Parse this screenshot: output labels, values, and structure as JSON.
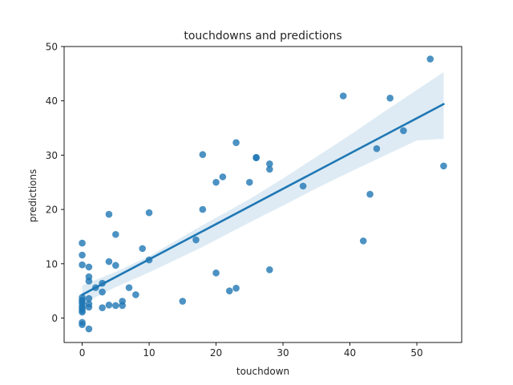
{
  "chart_data": {
    "type": "scatter",
    "title": "touchdowns and predictions",
    "xlabel": "touchdown",
    "ylabel": "predictions",
    "xlim": [
      -2.7,
      56.7
    ],
    "ylim": [
      -4.5,
      50
    ],
    "xticks": [
      0,
      10,
      20,
      30,
      40,
      50
    ],
    "yticks": [
      0,
      10,
      20,
      30,
      40,
      50
    ],
    "grid": false,
    "colors": {
      "points": "#1f77b4",
      "line": "#1f77b4",
      "band": "#1f77b4"
    },
    "points": [
      {
        "x": 0,
        "y": 13.8
      },
      {
        "x": 0,
        "y": 11.6
      },
      {
        "x": 0,
        "y": 9.8
      },
      {
        "x": 0,
        "y": 3.8
      },
      {
        "x": 0,
        "y": 3.3
      },
      {
        "x": 0,
        "y": 3.0
      },
      {
        "x": 0,
        "y": 2.6
      },
      {
        "x": 0,
        "y": 2.1
      },
      {
        "x": 0,
        "y": 1.8
      },
      {
        "x": 0,
        "y": 1.4
      },
      {
        "x": 0,
        "y": 1.1
      },
      {
        "x": 0,
        "y": -0.8
      },
      {
        "x": 0,
        "y": -1.2
      },
      {
        "x": 1,
        "y": 9.4
      },
      {
        "x": 1,
        "y": 7.6
      },
      {
        "x": 1,
        "y": 6.8
      },
      {
        "x": 1,
        "y": 3.6
      },
      {
        "x": 1,
        "y": 2.6
      },
      {
        "x": 1,
        "y": 2.0
      },
      {
        "x": 1,
        "y": -2.0
      },
      {
        "x": 2,
        "y": 5.6
      },
      {
        "x": 3,
        "y": 6.4
      },
      {
        "x": 3,
        "y": 4.8
      },
      {
        "x": 3,
        "y": 1.9
      },
      {
        "x": 4,
        "y": 19.1
      },
      {
        "x": 4,
        "y": 10.4
      },
      {
        "x": 4,
        "y": 2.4
      },
      {
        "x": 5,
        "y": 15.4
      },
      {
        "x": 5,
        "y": 9.7
      },
      {
        "x": 5,
        "y": 2.3
      },
      {
        "x": 6,
        "y": 3.1
      },
      {
        "x": 6,
        "y": 2.3
      },
      {
        "x": 7,
        "y": 5.6
      },
      {
        "x": 8,
        "y": 4.3
      },
      {
        "x": 9,
        "y": 12.8
      },
      {
        "x": 10,
        "y": 19.4
      },
      {
        "x": 10,
        "y": 10.7
      },
      {
        "x": 15,
        "y": 3.1
      },
      {
        "x": 17,
        "y": 14.4
      },
      {
        "x": 18,
        "y": 30.1
      },
      {
        "x": 18,
        "y": 20.0
      },
      {
        "x": 20,
        "y": 25.0
      },
      {
        "x": 20,
        "y": 8.3
      },
      {
        "x": 21,
        "y": 26.0
      },
      {
        "x": 22,
        "y": 5.0
      },
      {
        "x": 23,
        "y": 32.3
      },
      {
        "x": 23,
        "y": 5.5
      },
      {
        "x": 25,
        "y": 25.0
      },
      {
        "x": 26,
        "y": 29.6
      },
      {
        "x": 26,
        "y": 29.5
      },
      {
        "x": 28,
        "y": 28.4
      },
      {
        "x": 28,
        "y": 27.4
      },
      {
        "x": 28,
        "y": 8.9
      },
      {
        "x": 33,
        "y": 24.3
      },
      {
        "x": 39,
        "y": 40.9
      },
      {
        "x": 42,
        "y": 14.2
      },
      {
        "x": 43,
        "y": 22.8
      },
      {
        "x": 44,
        "y": 31.2
      },
      {
        "x": 46,
        "y": 40.5
      },
      {
        "x": 48,
        "y": 34.5
      },
      {
        "x": 52,
        "y": 47.7
      },
      {
        "x": 54,
        "y": 28.0
      }
    ],
    "regression": {
      "x": [
        0,
        54
      ],
      "y": [
        4.3,
        39.4
      ]
    },
    "confidence_band": {
      "x": [
        0,
        5,
        10,
        18,
        25,
        30,
        35,
        40,
        45,
        50,
        54
      ],
      "upper": [
        6.0,
        8.5,
        11.4,
        17.1,
        21.9,
        25.7,
        29.7,
        33.7,
        37.9,
        42.0,
        45.3
      ],
      "lower": [
        2.6,
        5.7,
        8.4,
        13.1,
        17.6,
        20.7,
        23.9,
        26.9,
        29.8,
        32.7,
        33.0
      ]
    }
  }
}
